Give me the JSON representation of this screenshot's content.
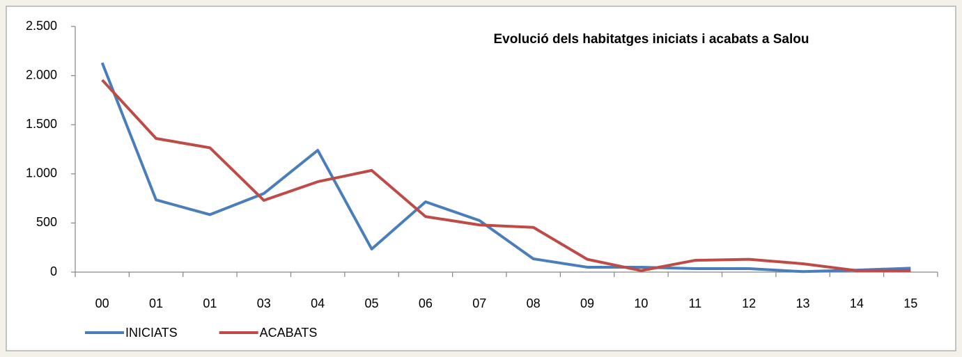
{
  "chart_data": {
    "type": "line",
    "title": "Evolució dels habitatges iniciats i acabats a Salou",
    "categories": [
      "00",
      "01",
      "01",
      "03",
      "04",
      "05",
      "06",
      "07",
      "08",
      "09",
      "10",
      "11",
      "12",
      "13",
      "14",
      "15"
    ],
    "series": [
      {
        "name": "INICIATS",
        "color": "#4a7ebb",
        "values": [
          2130,
          735,
          585,
          800,
          1240,
          235,
          715,
          525,
          135,
          50,
          50,
          35,
          35,
          5,
          20,
          40
        ]
      },
      {
        "name": "ACABATS",
        "color": "#be4b48",
        "values": [
          1955,
          1360,
          1265,
          730,
          920,
          1035,
          565,
          480,
          455,
          130,
          15,
          120,
          130,
          85,
          15,
          15
        ]
      }
    ],
    "ylim": [
      0,
      2500
    ],
    "yticks": [
      0,
      500,
      {
        "value": 1000,
        "label": "1.000"
      },
      {
        "value": 1500,
        "label": "1.500"
      },
      {
        "value": 2000,
        "label": "2.000"
      },
      {
        "value": 2500,
        "label": "2.500"
      }
    ],
    "grid": false,
    "legend": "bottom-left"
  }
}
